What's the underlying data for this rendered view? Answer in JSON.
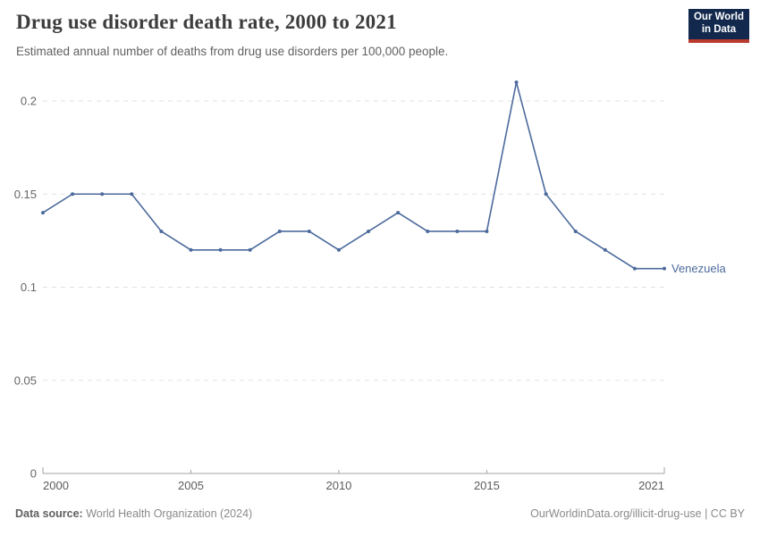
{
  "header": {
    "title": "Drug use disorder death rate, 2000 to 2021",
    "subtitle": "Estimated annual number of deaths from drug use disorders per 100,000 people.",
    "logo": {
      "line1": "Our World",
      "line2": "in Data",
      "bg_color": "#12294d",
      "accent_color": "#bb3a2e"
    }
  },
  "chart_data": {
    "type": "line",
    "title": "Drug use disorder death rate, 2000 to 2021",
    "x": [
      2000,
      2001,
      2002,
      2003,
      2004,
      2005,
      2006,
      2007,
      2008,
      2009,
      2010,
      2011,
      2012,
      2013,
      2014,
      2015,
      2016,
      2017,
      2018,
      2019,
      2020,
      2021
    ],
    "series": [
      {
        "name": "Venezuela",
        "color": "#4C6A9C",
        "values": [
          0.14,
          0.15,
          0.15,
          0.15,
          0.13,
          0.12,
          0.12,
          0.12,
          0.13,
          0.13,
          0.12,
          0.13,
          0.14,
          0.13,
          0.13,
          0.13,
          0.21,
          0.15,
          0.13,
          0.12,
          0.11,
          0.11
        ]
      }
    ],
    "xticks": [
      2000,
      2005,
      2010,
      2015,
      2021
    ],
    "yticks": [
      0,
      0.05,
      0.1,
      0.15,
      0.2
    ],
    "xlim": [
      2000,
      2021
    ],
    "ylim": [
      0,
      0.21
    ],
    "grid": "horizontal-dashed",
    "legend_position": "end-of-line-label",
    "xlabel": "",
    "ylabel": ""
  },
  "footer": {
    "source_label": "Data source:",
    "source_value": "World Health Organization (2024)",
    "credit": "OurWorldinData.org/illicit-drug-use | CC BY"
  }
}
